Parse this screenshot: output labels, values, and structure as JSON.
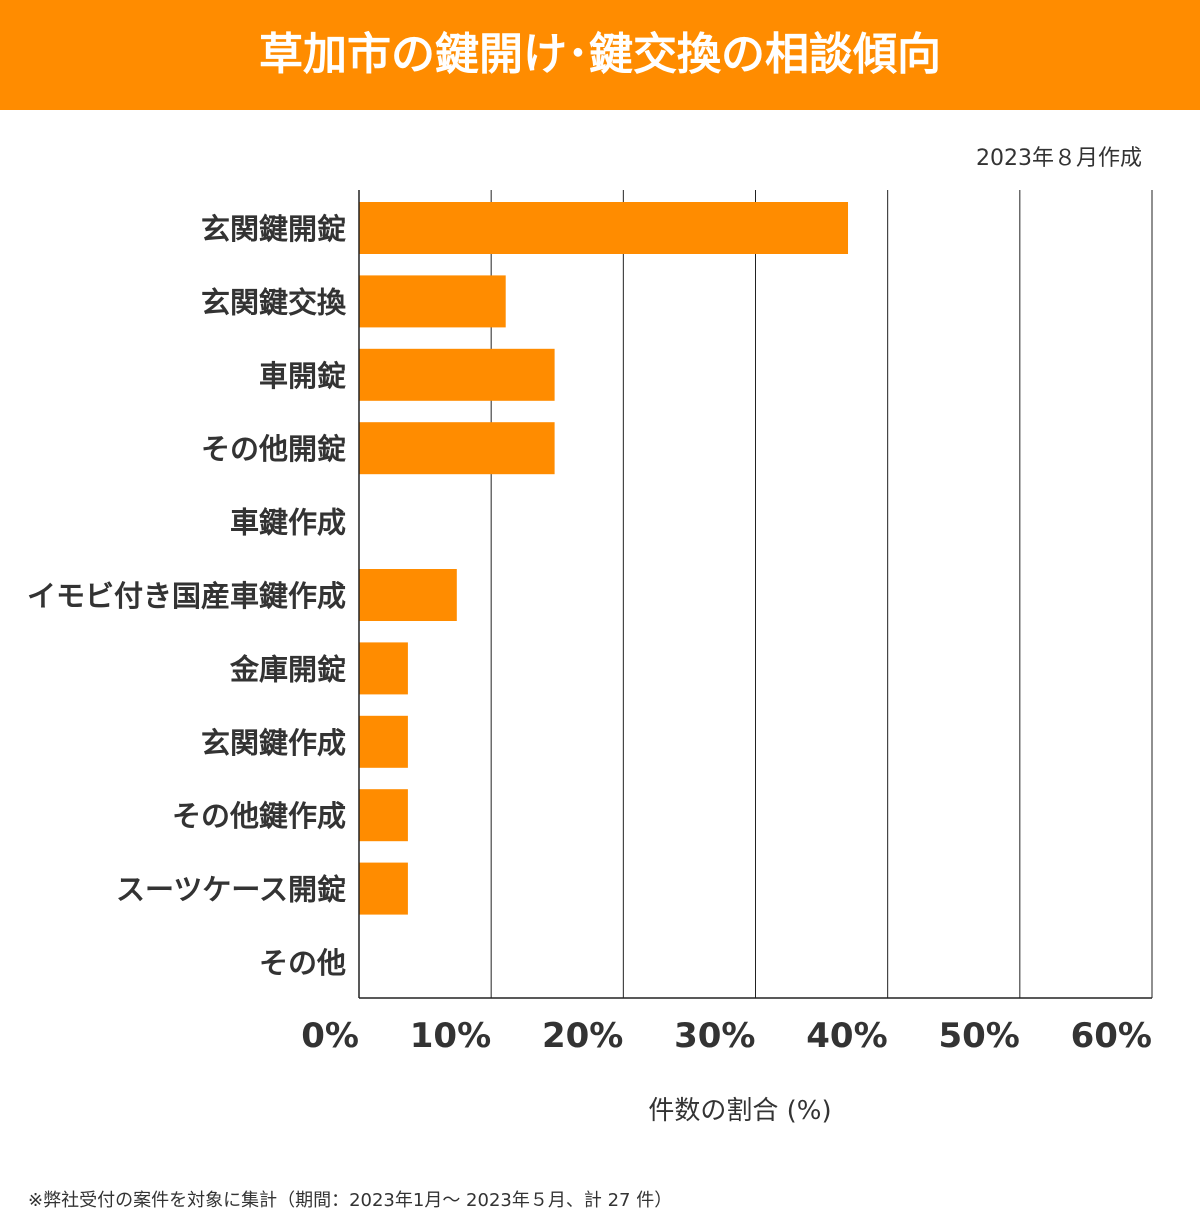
{
  "header": {
    "title": "草加市の鍵開け･鍵交換の相談傾向"
  },
  "date_note": "2023年８月作成",
  "footnote": "※弊社受付の案件を対象に集計（期間：2023年1月～ 2023年５月、計 27 件）",
  "colors": {
    "bar": "#ff8c00",
    "header": "#ff8c00"
  },
  "chart_data": {
    "type": "bar",
    "orientation": "horizontal",
    "categories": [
      "玄関鍵開錠",
      "玄関鍵交換",
      "車開錠",
      "その他開錠",
      "車鍵作成",
      "イモビ付き国産車鍵作成",
      "金庫開錠",
      "玄関鍵作成",
      "その他鍵作成",
      "スーツケース開錠",
      "その他"
    ],
    "values": [
      37.0,
      11.1,
      14.8,
      14.8,
      0,
      7.4,
      3.7,
      3.7,
      3.7,
      3.7,
      0
    ],
    "xlabel": "件数の割合 (%)",
    "xlim": [
      0,
      60
    ],
    "xticks": [
      "0%",
      "10%",
      "20%",
      "30%",
      "40%",
      "50%",
      "60%"
    ],
    "grid": true
  }
}
